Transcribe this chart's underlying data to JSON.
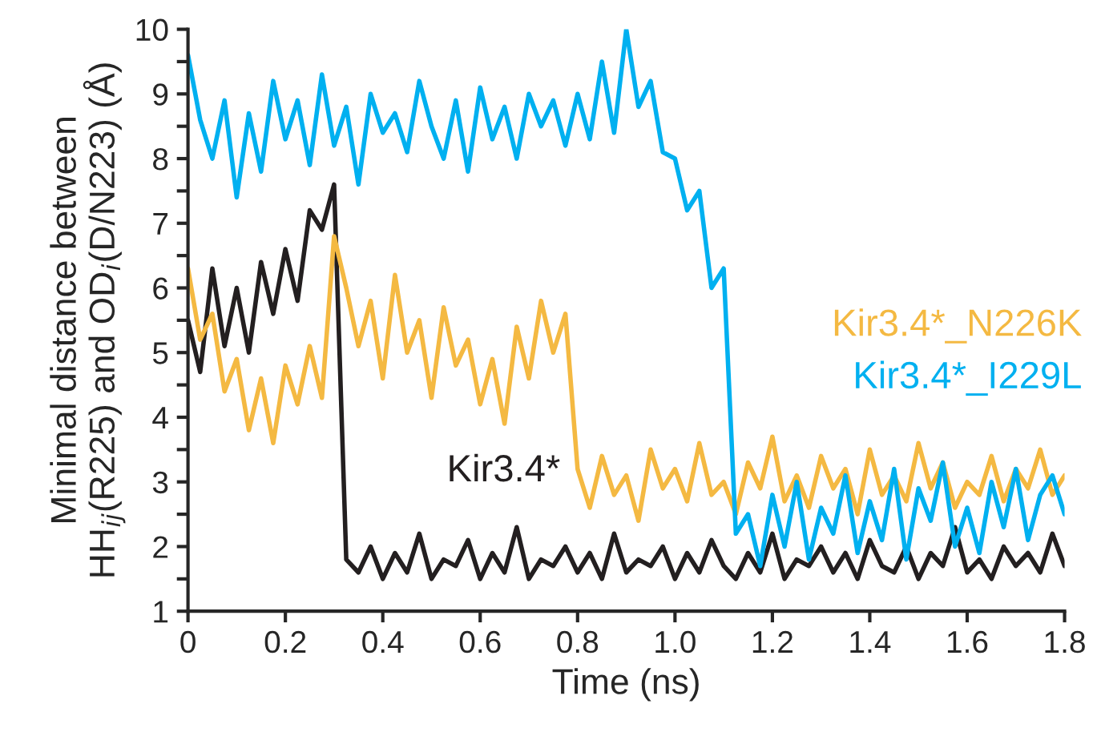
{
  "chart_data": {
    "type": "line",
    "xlabel": "Time (ns)",
    "ylabel": "Minimal distance between\nHH$_{ij}$(R225) and OD$_{i}$(D/N223) (Å)",
    "x": [
      0,
      0.025,
      0.05,
      0.075,
      0.1,
      0.125,
      0.15,
      0.175,
      0.2,
      0.225,
      0.25,
      0.275,
      0.3,
      0.325,
      0.35,
      0.375,
      0.4,
      0.425,
      0.45,
      0.475,
      0.5,
      0.525,
      0.55,
      0.575,
      0.6,
      0.625,
      0.65,
      0.675,
      0.7,
      0.725,
      0.75,
      0.775,
      0.8,
      0.825,
      0.85,
      0.875,
      0.9,
      0.925,
      0.95,
      0.975,
      1.0,
      1.025,
      1.05,
      1.075,
      1.1,
      1.125,
      1.15,
      1.175,
      1.2,
      1.225,
      1.25,
      1.275,
      1.3,
      1.325,
      1.35,
      1.375,
      1.4,
      1.425,
      1.45,
      1.475,
      1.5,
      1.525,
      1.55,
      1.575,
      1.6,
      1.625,
      1.65,
      1.675,
      1.7,
      1.725,
      1.75,
      1.775,
      1.8
    ],
    "series": [
      {
        "name": "Kir3.4*",
        "color": "#231f20",
        "values": [
          5.5,
          4.7,
          6.3,
          5.1,
          6.0,
          5.0,
          6.4,
          5.6,
          6.6,
          5.8,
          7.2,
          6.9,
          7.6,
          1.8,
          1.6,
          2.0,
          1.5,
          1.9,
          1.6,
          2.2,
          1.5,
          1.8,
          1.7,
          2.1,
          1.5,
          1.9,
          1.6,
          2.3,
          1.5,
          1.8,
          1.7,
          2.0,
          1.6,
          1.9,
          1.5,
          2.2,
          1.6,
          1.8,
          1.7,
          2.0,
          1.5,
          1.9,
          1.6,
          2.1,
          1.7,
          1.5,
          1.9,
          1.6,
          2.2,
          1.5,
          1.8,
          1.7,
          2.0,
          1.6,
          1.9,
          1.5,
          2.1,
          1.7,
          1.6,
          2.0,
          1.5,
          1.9,
          1.7,
          2.3,
          1.6,
          1.8,
          1.5,
          2.0,
          1.7,
          1.9,
          1.6,
          2.2,
          1.7
        ]
      },
      {
        "name": "Kir3.4*_N226K",
        "color": "#f4b942",
        "values": [
          6.3,
          5.2,
          5.6,
          4.4,
          4.9,
          3.8,
          4.6,
          3.6,
          4.8,
          4.2,
          5.1,
          4.3,
          6.8,
          6.0,
          5.1,
          5.8,
          4.6,
          6.2,
          5.0,
          5.5,
          4.3,
          5.7,
          4.8,
          5.2,
          4.2,
          4.9,
          3.9,
          5.4,
          4.6,
          5.8,
          5.0,
          5.6,
          3.2,
          2.6,
          3.4,
          2.8,
          3.1,
          2.4,
          3.5,
          2.9,
          3.2,
          2.7,
          3.6,
          2.8,
          3.0,
          2.5,
          3.3,
          2.9,
          3.7,
          2.7,
          3.1,
          2.6,
          3.4,
          2.9,
          3.2,
          2.5,
          3.5,
          2.8,
          3.1,
          2.7,
          3.6,
          2.9,
          3.3,
          2.6,
          3.0,
          2.8,
          3.4,
          2.7,
          3.2,
          2.9,
          3.5,
          2.8,
          3.1
        ]
      },
      {
        "name": "Kir3.4*_I229L",
        "color": "#00b0f0",
        "values": [
          9.6,
          8.6,
          8.0,
          8.9,
          7.4,
          8.7,
          7.8,
          9.2,
          8.3,
          8.9,
          7.9,
          9.3,
          8.2,
          8.8,
          7.6,
          9.0,
          8.4,
          8.7,
          8.1,
          9.2,
          8.5,
          8.0,
          8.9,
          7.8,
          9.1,
          8.3,
          8.8,
          8.0,
          9.0,
          8.5,
          8.9,
          8.2,
          9.0,
          8.3,
          9.5,
          8.4,
          10.0,
          8.8,
          9.2,
          8.1,
          8.0,
          7.2,
          7.5,
          6.0,
          6.3,
          2.2,
          2.5,
          1.7,
          2.8,
          2.0,
          3.0,
          1.8,
          2.6,
          2.2,
          3.1,
          1.9,
          2.7,
          2.1,
          3.2,
          1.8,
          2.9,
          2.4,
          3.3,
          2.0,
          2.6,
          1.9,
          3.0,
          2.3,
          3.2,
          2.1,
          2.8,
          3.1,
          2.5
        ]
      }
    ],
    "xlim": [
      0,
      1.8
    ],
    "ylim": [
      1,
      10
    ],
    "xticks": [
      0,
      0.2,
      0.4,
      0.6,
      0.8,
      {
        "value": 1.0,
        "label": "1.0"
      },
      1.2,
      1.4,
      1.6,
      1.8
    ],
    "yticks": [
      1,
      {
        "value": 1.5,
        "label": null
      },
      2,
      {
        "value": 2.5,
        "label": null
      },
      3,
      {
        "value": 3.5,
        "label": null
      },
      4,
      {
        "value": 4.5,
        "label": null
      },
      5,
      {
        "value": 5.5,
        "label": null
      },
      6,
      {
        "value": 6.5,
        "label": null
      },
      7,
      {
        "value": 7.5,
        "label": null
      },
      8,
      {
        "value": 8.5,
        "label": null
      },
      9,
      {
        "value": 9.5,
        "label": null
      },
      10
    ],
    "grid": false,
    "legend": false,
    "marker": "none",
    "line_style": "solid"
  }
}
